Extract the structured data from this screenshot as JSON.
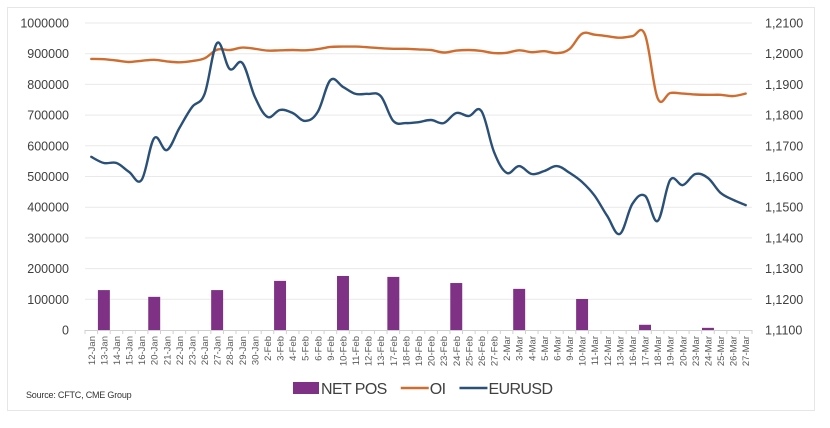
{
  "chart_data": {
    "type": "bar+line",
    "title": "",
    "source": "Source: CFTC, CME Group",
    "categories": [
      "12-Jan",
      "13-Jan",
      "14-Jan",
      "15-Jan",
      "16-Jan",
      "20-Jan",
      "21-Jan",
      "22-Jan",
      "23-Jan",
      "26-Jan",
      "27-Jan",
      "28-Jan",
      "29-Jan",
      "30-Jan",
      "2-Feb",
      "3-Feb",
      "4-Feb",
      "5-Feb",
      "6-Feb",
      "9-Feb",
      "10-Feb",
      "11-Feb",
      "12-Feb",
      "13-Feb",
      "17-Feb",
      "18-Feb",
      "19-Feb",
      "20-Feb",
      "23-Feb",
      "24-Feb",
      "25-Feb",
      "26-Feb",
      "27-Feb",
      "2-Mar",
      "3-Mar",
      "4-Mar",
      "5-Mar",
      "6-Mar",
      "9-Mar",
      "10-Mar",
      "11-Mar",
      "12-Mar",
      "13-Mar",
      "16-Mar",
      "17-Mar",
      "18-Mar",
      "19-Mar",
      "20-Mar",
      "23-Mar",
      "24-Mar",
      "25-Mar",
      "26-Mar",
      "27-Mar"
    ],
    "y_left": {
      "ylim": [
        0,
        1000000
      ],
      "ticks": [
        "0",
        "100000",
        "200000",
        "300000",
        "400000",
        "500000",
        "600000",
        "700000",
        "800000",
        "900000",
        "1000000"
      ]
    },
    "y_right": {
      "ylim": [
        1.11,
        1.21
      ],
      "ticks": [
        "1,1100",
        "1,1200",
        "1,1300",
        "1,1400",
        "1,1500",
        "1,1600",
        "1,1700",
        "1,1800",
        "1,1900",
        "1,2000",
        "1,2100"
      ]
    },
    "grid": true,
    "legend_position": "bottom",
    "series": [
      {
        "name": "NET POS",
        "type": "bar",
        "axis": "left",
        "color": "#7f3186",
        "values": [
          null,
          130000,
          null,
          null,
          null,
          108000,
          null,
          null,
          null,
          null,
          130000,
          null,
          null,
          null,
          null,
          160000,
          null,
          null,
          null,
          null,
          176000,
          null,
          null,
          null,
          173000,
          null,
          null,
          null,
          null,
          153000,
          null,
          null,
          null,
          null,
          134000,
          null,
          null,
          null,
          null,
          101000,
          null,
          null,
          null,
          null,
          17000,
          null,
          null,
          null,
          null,
          7000,
          null,
          null,
          null
        ]
      },
      {
        "name": "OI",
        "type": "line",
        "axis": "left",
        "color": "#cf6d30",
        "values": [
          883000,
          882000,
          878000,
          873000,
          877000,
          880000,
          875000,
          872000,
          876000,
          885000,
          913000,
          912000,
          920000,
          916000,
          910000,
          911000,
          912000,
          911000,
          915000,
          922000,
          923000,
          923000,
          921000,
          918000,
          916000,
          916000,
          914000,
          912000,
          904000,
          910000,
          912000,
          909000,
          902000,
          903000,
          911000,
          905000,
          908000,
          902000,
          915000,
          965000,
          962000,
          957000,
          952000,
          957000,
          962000,
          755000,
          772000,
          770000,
          767000,
          766000,
          766000,
          762000,
          770000
        ]
      },
      {
        "name": "EURUSD",
        "type": "line",
        "axis": "right",
        "color": "#2a5078",
        "values": [
          1.1664,
          1.1644,
          1.1644,
          1.1615,
          1.1589,
          1.1725,
          1.1686,
          1.1758,
          1.1826,
          1.1869,
          1.2035,
          1.195,
          1.197,
          1.1859,
          1.1794,
          1.1817,
          1.1807,
          1.1781,
          1.1811,
          1.1914,
          1.1892,
          1.1869,
          1.1869,
          1.1862,
          1.1781,
          1.1774,
          1.1777,
          1.1784,
          1.1774,
          1.1807,
          1.1797,
          1.1813,
          1.168,
          1.1612,
          1.1634,
          1.1608,
          1.1618,
          1.1634,
          1.1612,
          1.1582,
          1.1537,
          1.1471,
          1.1413,
          1.1511,
          1.1537,
          1.1455,
          1.1589,
          1.1572,
          1.1608,
          1.1595,
          1.1547,
          1.1524,
          1.1507
        ]
      }
    ]
  }
}
